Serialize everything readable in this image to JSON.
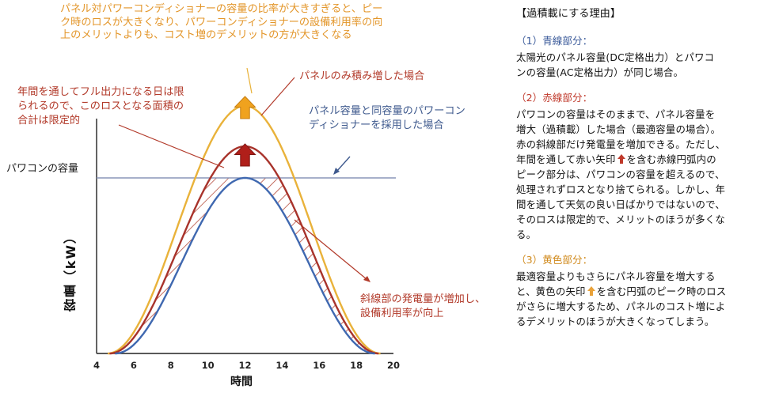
{
  "colors": {
    "blue": "#3f68b0",
    "red": "#a8332b",
    "yellow": "#e9b23a",
    "capacity_line": "#8a96b8",
    "hatch": "#b44a3a"
  },
  "annotations": {
    "orange_note": [
      "パネル対パワーコンディショナーの容量の比率が大きすぎると、ピー",
      "ク時のロスが大きくなり、パワーコンディショナーの設備利用率の向",
      "上のメリットよりも、コスト増のデメリットの方が大きくなる"
    ],
    "red_top": "パネルのみ積み増した場合",
    "red_left": [
      "年間を通してフル出力になる日は限",
      "られるので、このロスとなる面積の",
      "合計は限定的"
    ],
    "blue_note": [
      "パネル容量と同容量のパワーコン",
      "ディショナーを採用した場合"
    ],
    "red_right": [
      "斜線部の発電量が増加し、",
      "設備利用率が向上"
    ],
    "capacity_label": "パワコンの容量"
  },
  "chart_data": {
    "type": "line",
    "xlabel": "時間",
    "ylabel": "容量（kW）",
    "x_ticks": [
      "4",
      "6",
      "8",
      "10",
      "12",
      "14",
      "16",
      "18",
      "20"
    ],
    "xlim": [
      4,
      20
    ],
    "series": [
      {
        "name": "パネル容量と同容量のパワーコンディショナーを採用した場合",
        "color": "blue",
        "start": 5,
        "end": 19,
        "peak_x": 12,
        "peak": 1.0
      },
      {
        "name": "パネルのみ積み増した場合",
        "color": "red",
        "start": 4.7,
        "end": 19.2,
        "peak_x": 12,
        "peak": 1.18
      },
      {
        "name": "パネル対パワーコンディショナーの容量の比率が大きすぎる場合",
        "color": "yellow",
        "start": 4.6,
        "end": 19.3,
        "peak_x": 12,
        "peak": 1.41
      }
    ],
    "capacity_level": 1.0
  },
  "panel": {
    "title": "【過積載にする理由】",
    "sections": [
      {
        "head": "（1）青線部分：",
        "lines": [
          "太陽光のパネル容量(DC定格出力）とパワコ",
          "ンの容量(AC定格出力）が同じ場合。"
        ]
      },
      {
        "head": "（2）赤線部分：",
        "lines": [
          "パワコンの容量はそのままで、パネル容量を",
          "増大（過積載）した場合（最適容量の場合）。",
          "赤の斜線部だけ発電量を増加できる。ただし、",
          "年間を通して赤い矢印",
          "を含む赤線円弧内の",
          "ピーク部分は、パワコンの容量を超えるので、",
          "処理されずロスとなり捨てられる。しかし、年",
          "間を通して天気の良い日ばかりではないので、",
          "そのロスは限定的で、メリットのほうが多くな",
          "る。"
        ]
      },
      {
        "head": "（3）黄色部分：",
        "lines": [
          "最適容量よりもさらにパネル容量を増大する",
          "と、黄色の矢印",
          "を含む円弧のピーク時のロス",
          "がさらに増大するため、パネルのコスト増によ",
          "るデメリットのほうが大きくなってしまう。"
        ]
      }
    ]
  }
}
